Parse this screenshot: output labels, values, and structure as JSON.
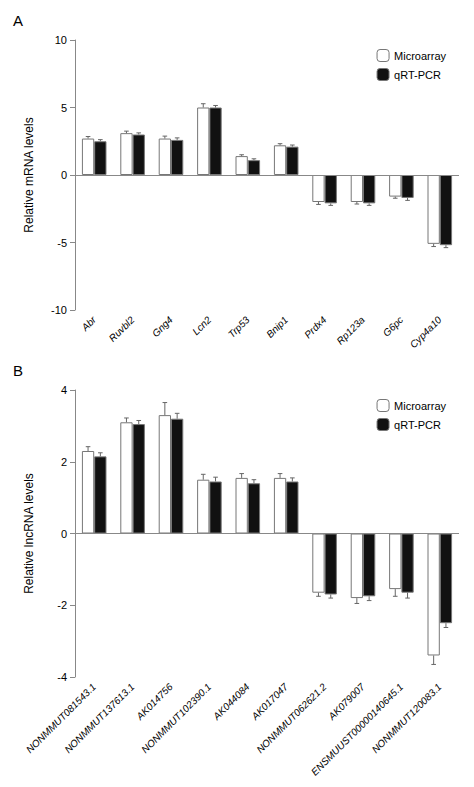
{
  "chart_data": [
    {
      "type": "bar",
      "title": "A",
      "categories": [
        "Abr",
        "Ruvbl2",
        "Gng4",
        "Lcn2",
        "Trp53",
        "Bnip1",
        "Prdx4",
        "Rp123a",
        "G6pc",
        "Cyp4a10"
      ],
      "series": [
        {
          "name": "Microarray",
          "color": "white",
          "values": [
            2.7,
            3.1,
            2.7,
            5.0,
            1.4,
            2.2,
            -2.0,
            -2.0,
            -1.6,
            -5.1
          ],
          "errors": [
            0.15,
            0.15,
            0.18,
            0.28,
            0.1,
            0.12,
            0.18,
            0.15,
            0.12,
            0.2
          ]
        },
        {
          "name": "qRT-PCR",
          "color": "#111111",
          "values": [
            2.5,
            3.0,
            2.6,
            5.0,
            1.1,
            2.1,
            -2.1,
            -2.1,
            -1.7,
            -5.2
          ],
          "errors": [
            0.12,
            0.12,
            0.15,
            0.15,
            0.1,
            0.12,
            0.15,
            0.15,
            0.18,
            0.18
          ]
        }
      ],
      "ylabel": "Relative mRNA levels",
      "ylim": [
        -10,
        10
      ],
      "yticks": [
        -10,
        -5,
        0,
        5,
        10
      ],
      "grid": false,
      "legend": "upper right"
    },
    {
      "type": "bar",
      "title": "B",
      "categories": [
        "NONMMUT081543.1",
        "NONMMUT137613.1",
        "AK014756",
        "NONMMUT102390.1",
        "AK044084",
        "AK017047",
        "NONMMUT062621.2",
        "AK079007",
        "ENSMUUST00000140645.1",
        "NONMMUT120083.1"
      ],
      "series": [
        {
          "name": "Microarray",
          "color": "white",
          "values": [
            2.3,
            3.1,
            3.3,
            1.5,
            1.55,
            1.55,
            -1.65,
            -1.8,
            -1.55,
            -3.4
          ],
          "errors": [
            0.12,
            0.12,
            0.35,
            0.15,
            0.12,
            0.12,
            0.1,
            0.15,
            0.2,
            0.25
          ]
        },
        {
          "name": "qRT-PCR",
          "color": "#111111",
          "values": [
            2.15,
            3.05,
            3.2,
            1.45,
            1.4,
            1.45,
            -1.7,
            -1.75,
            -1.65,
            -2.5
          ],
          "errors": [
            0.1,
            0.1,
            0.15,
            0.12,
            0.1,
            0.1,
            0.1,
            0.12,
            0.15,
            0.12
          ]
        }
      ],
      "ylabel": "Relative lncRNA levels",
      "ylim": [
        -4,
        4
      ],
      "yticks": [
        -4,
        -2,
        0,
        2,
        4
      ],
      "grid": false,
      "legend": "upper right"
    }
  ]
}
